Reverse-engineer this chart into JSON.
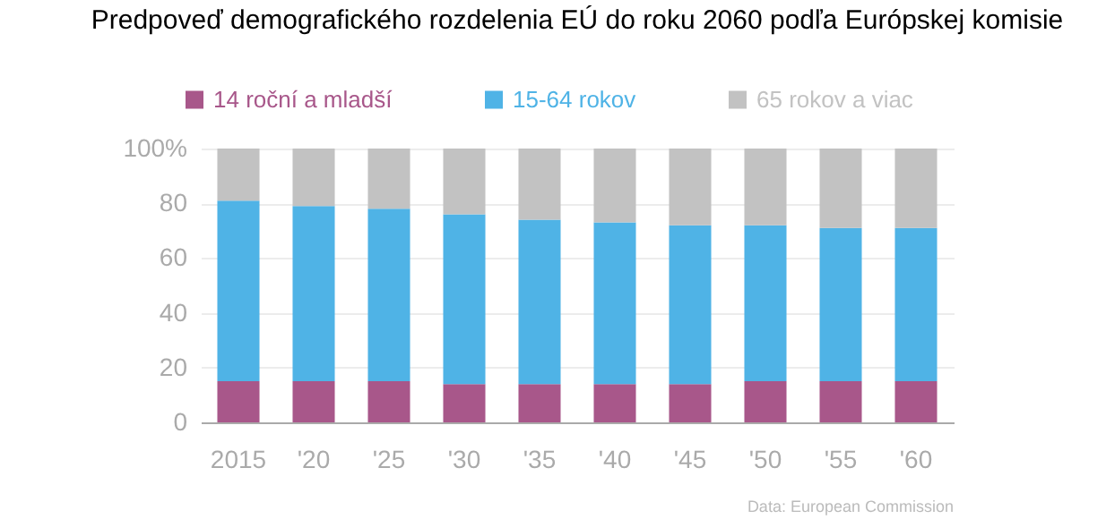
{
  "chart_data": {
    "type": "bar",
    "title": "Predpoveď demografického rozdelenia EÚ do roku 2060 podľa Európskej komisie",
    "categories": [
      "2015",
      "'20",
      "'25",
      "'30",
      "'35",
      "'40",
      "'45",
      "'50",
      "'55",
      "'60"
    ],
    "stacked": true,
    "series": [
      {
        "name": "14 roční a mladší",
        "color": "#a8578a",
        "values": [
          15,
          15,
          15,
          14,
          14,
          14,
          14,
          15,
          15,
          15
        ]
      },
      {
        "name": "15-64 rokov",
        "color": "#4fb3e6",
        "values": [
          66,
          64,
          63,
          62,
          60,
          59,
          58,
          57,
          56,
          56
        ]
      },
      {
        "name": "65 rokov a viac",
        "color": "#c2c2c2",
        "values": [
          19,
          21,
          22,
          24,
          26,
          27,
          28,
          28,
          29,
          29
        ]
      }
    ],
    "ylim": [
      0,
      100
    ],
    "yticks": [
      0,
      20,
      40,
      60,
      80,
      {
        "value": 100,
        "label": "100%"
      }
    ],
    "grid": "y",
    "legend": "top left",
    "annotations": [
      "Data: European Commission"
    ]
  }
}
